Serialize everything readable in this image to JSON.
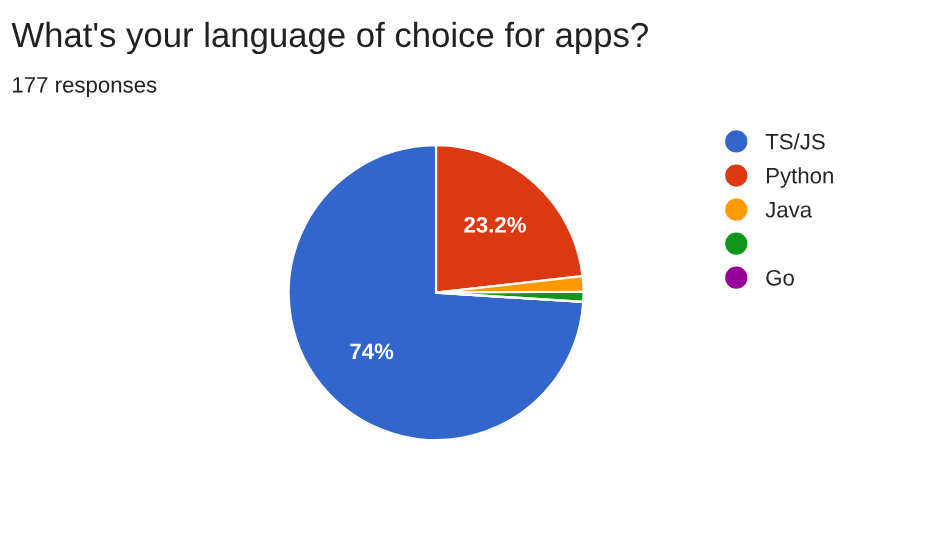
{
  "chart_data": {
    "type": "pie",
    "title": "What's your language of choice for apps?",
    "subtitle": "177 responses",
    "categories": [
      "TS/JS",
      "Python",
      "Java",
      null,
      "Go"
    ],
    "values": [
      74,
      23.2,
      1.7,
      1.1,
      0
    ],
    "colors": [
      "#3366cc",
      "#dc3912",
      "#ff9900",
      "#109618",
      "#990099"
    ],
    "value_labels": [
      "74%",
      "23.2%",
      null,
      null,
      null
    ],
    "legend": "right"
  }
}
